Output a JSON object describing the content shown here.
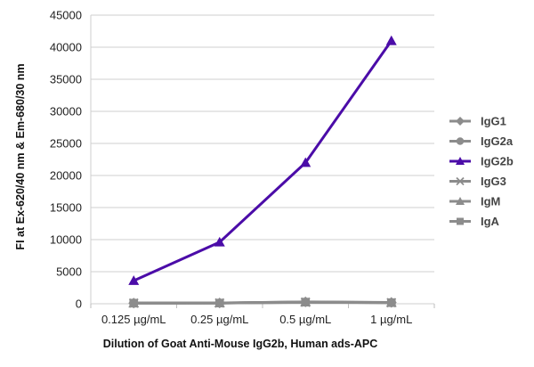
{
  "chart_data": {
    "type": "line",
    "title": "",
    "xlabel": "Dilution of Goat Anti-Mouse IgG2b, Human ads-APC",
    "ylabel": "FI at Ex-620/40 nm & Em-680/30 nm",
    "categories": [
      "0.125 µg/mL",
      "0.25 µg/mL",
      "0.5 µg/mL",
      "1 µg/mL"
    ],
    "ylim": [
      0,
      45000
    ],
    "yticks": [
      0,
      5000,
      10000,
      15000,
      20000,
      25000,
      30000,
      35000,
      40000,
      45000
    ],
    "grid": "horizontal",
    "legend_position": "right",
    "series": [
      {
        "name": "IgG1",
        "values": [
          100,
          120,
          300,
          200
        ],
        "color": "#8c8c8c",
        "marker": "diamond"
      },
      {
        "name": "IgG2a",
        "values": [
          100,
          110,
          250,
          180
        ],
        "color": "#8c8c8c",
        "marker": "circle"
      },
      {
        "name": "IgG2b",
        "values": [
          3600,
          9600,
          22000,
          41000
        ],
        "color": "#4b0ca8",
        "marker": "triangle"
      },
      {
        "name": "IgG3",
        "values": [
          100,
          110,
          230,
          170
        ],
        "color": "#8c8c8c",
        "marker": "x"
      },
      {
        "name": "IgM",
        "values": [
          100,
          120,
          280,
          190
        ],
        "color": "#8c8c8c",
        "marker": "triangle"
      },
      {
        "name": "IgA",
        "values": [
          100,
          110,
          260,
          170
        ],
        "color": "#8c8c8c",
        "marker": "square"
      }
    ]
  }
}
